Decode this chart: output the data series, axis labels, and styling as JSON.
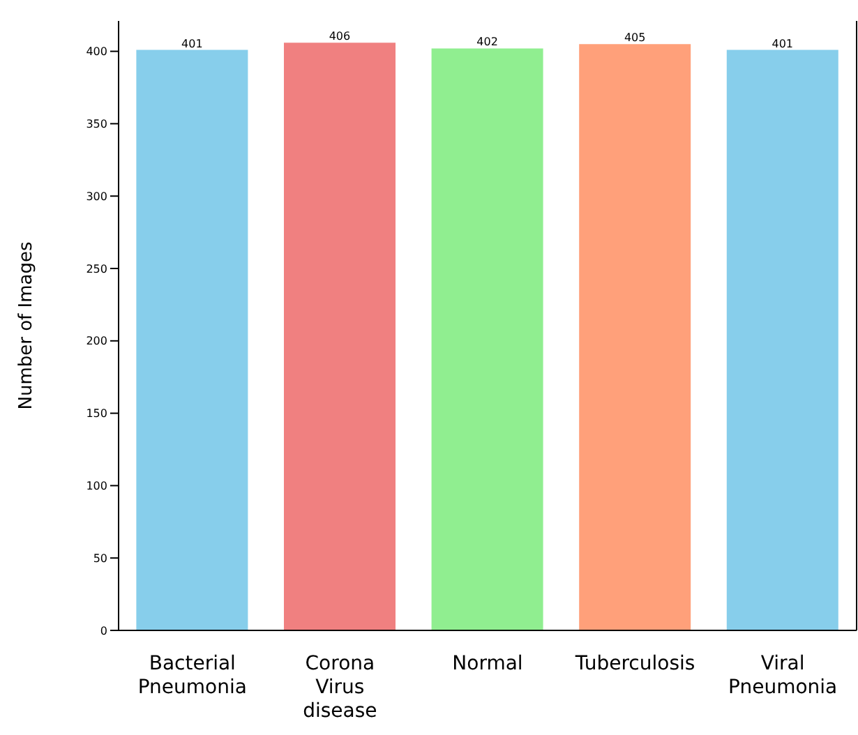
{
  "chart_data": {
    "type": "bar",
    "ylabel": "Number of Images",
    "categories": [
      "Bacterial Pneumonia",
      "Corona Virus disease",
      "Normal",
      "Tuberculosis",
      "Viral Pneumonia"
    ],
    "values": [
      401,
      406,
      402,
      405,
      401
    ],
    "colors": [
      "#87ceeb",
      "#f08080",
      "#90ee90",
      "#ffa07a",
      "#87ceeb"
    ],
    "ylim": [
      0,
      421
    ],
    "yticks": [
      0,
      50,
      100,
      150,
      200,
      250,
      300,
      350,
      400
    ],
    "data_labels": true,
    "grid": false,
    "legend": false
  }
}
